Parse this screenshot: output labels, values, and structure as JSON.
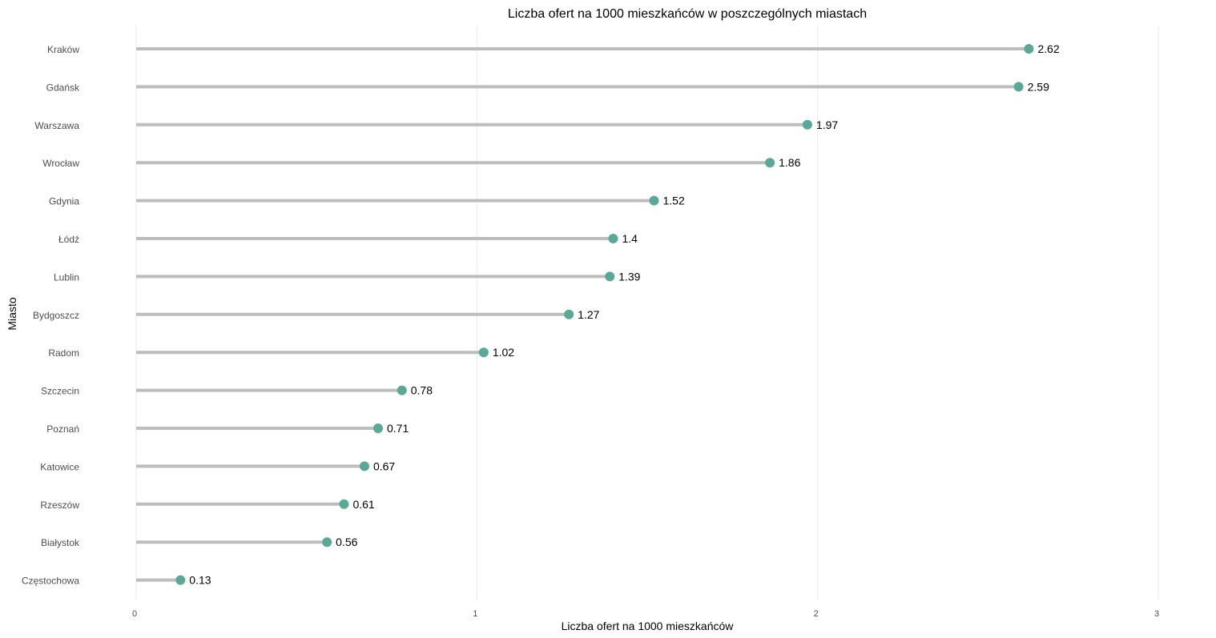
{
  "chart_data": {
    "type": "lollipop",
    "orientation": "horizontal",
    "title": "Liczba ofert na 1000 mieszkańców w poszczególnych miastach",
    "xlabel": "Liczba ofert na 1000 mieszkańców",
    "ylabel": "Miasto",
    "xlim": [
      0,
      3
    ],
    "xticks": [
      "0",
      "1",
      "2",
      "3"
    ],
    "grid": "vertical-major",
    "colors": {
      "point": "#5aa898",
      "stem": "#bdbdbd",
      "grid": "#ebebeb"
    },
    "categories": [
      "Kraków",
      "Gdańsk",
      "Warszawa",
      "Wrocław",
      "Gdynia",
      "Łódź",
      "Lublin",
      "Bydgoszcz",
      "Radom",
      "Szczecin",
      "Poznań",
      "Katowice",
      "Rzeszów",
      "Białystok",
      "Częstochowa"
    ],
    "values": [
      2.62,
      2.59,
      1.97,
      1.86,
      1.52,
      1.4,
      1.39,
      1.27,
      1.02,
      0.78,
      0.71,
      0.67,
      0.61,
      0.56,
      0.13
    ],
    "labels": [
      "2.62",
      "2.59",
      "1.97",
      "1.86",
      "1.52",
      "1.4",
      "1.39",
      "1.27",
      "1.02",
      "0.78",
      "0.71",
      "0.67",
      "0.61",
      "0.56",
      "0.13"
    ]
  }
}
